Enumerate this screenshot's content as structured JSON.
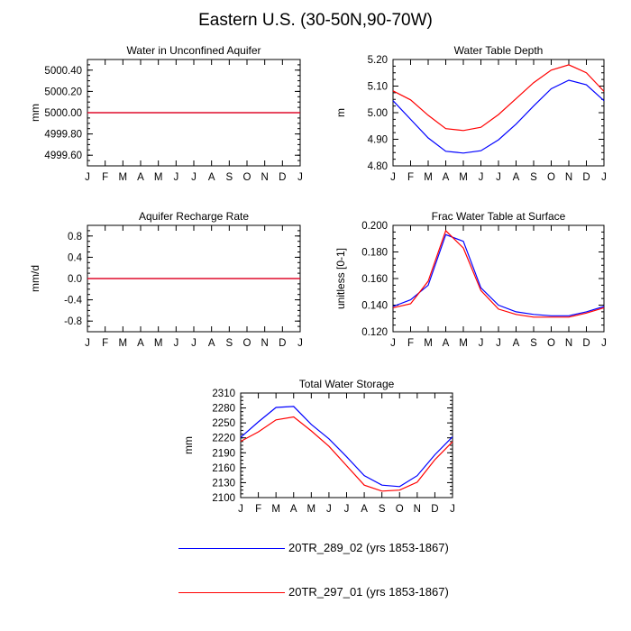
{
  "figure": {
    "title": "Eastern U.S. (30-50N,90-70W)"
  },
  "colors": {
    "run1": "#0000ff",
    "run2": "#ff0000"
  },
  "legend": [
    {
      "label": "20TR_289_02 (yrs 1853-1867)",
      "color": "#0000ff"
    },
    {
      "label": "20TR_297_01 (yrs 1853-1867)",
      "color": "#ff0000"
    }
  ],
  "chart_data": [
    {
      "type": "line",
      "title": "Water in Unconfined Aquifer",
      "ylabel": "mm",
      "x": [
        "J",
        "F",
        "M",
        "A",
        "M",
        "J",
        "J",
        "A",
        "S",
        "O",
        "N",
        "D",
        "J"
      ],
      "ylim": [
        4999.5,
        5000.5
      ],
      "yticks": [
        4999.6,
        4999.8,
        5000.0,
        5000.2,
        5000.4
      ],
      "ytick_labels": [
        "4999.60",
        "4999.80",
        "5000.00",
        "5000.20",
        "5000.40"
      ],
      "series": [
        {
          "name": "20TR_289_02 (yrs 1853-1867)",
          "color": "#0000ff",
          "values": [
            5000,
            5000,
            5000,
            5000,
            5000,
            5000,
            5000,
            5000,
            5000,
            5000,
            5000,
            5000,
            5000
          ]
        },
        {
          "name": "20TR_297_01 (yrs 1853-1867)",
          "color": "#ff0000",
          "values": [
            5000,
            5000,
            5000,
            5000,
            5000,
            5000,
            5000,
            5000,
            5000,
            5000,
            5000,
            5000,
            5000
          ]
        }
      ]
    },
    {
      "type": "line",
      "title": "Water Table Depth",
      "ylabel": "m",
      "x": [
        "J",
        "F",
        "M",
        "A",
        "M",
        "J",
        "J",
        "A",
        "S",
        "O",
        "N",
        "D",
        "J"
      ],
      "ylim": [
        4.8,
        5.2
      ],
      "yticks": [
        4.8,
        4.9,
        5.0,
        5.1,
        5.2
      ],
      "ytick_labels": [
        "4.80",
        "4.90",
        "5.00",
        "5.10",
        "5.20"
      ],
      "series": [
        {
          "name": "20TR_289_02 (yrs 1853-1867)",
          "color": "#0000ff",
          "values": [
            5.045,
            4.975,
            4.905,
            4.855,
            4.848,
            4.857,
            4.898,
            4.957,
            5.025,
            5.09,
            5.122,
            5.105,
            5.045
          ]
        },
        {
          "name": "20TR_297_01 (yrs 1853-1867)",
          "color": "#ff0000",
          "values": [
            5.082,
            5.048,
            4.99,
            4.94,
            4.933,
            4.945,
            4.993,
            5.053,
            5.113,
            5.16,
            5.18,
            5.15,
            5.08
          ]
        }
      ]
    },
    {
      "type": "line",
      "title": "Aquifer Recharge Rate",
      "ylabel": "mm/d",
      "x": [
        "J",
        "F",
        "M",
        "A",
        "M",
        "J",
        "J",
        "A",
        "S",
        "O",
        "N",
        "D",
        "J"
      ],
      "ylim": [
        -1.0,
        1.0
      ],
      "yticks": [
        -0.8,
        -0.4,
        0.0,
        0.4,
        0.8
      ],
      "ytick_labels": [
        "-0.8",
        "-0.4",
        "0.0",
        "0.4",
        "0.8"
      ],
      "series": [
        {
          "name": "20TR_289_02 (yrs 1853-1867)",
          "color": "#0000ff",
          "values": [
            0,
            0,
            0,
            0,
            0,
            0,
            0,
            0,
            0,
            0,
            0,
            0,
            0
          ]
        },
        {
          "name": "20TR_297_01 (yrs 1853-1867)",
          "color": "#ff0000",
          "values": [
            0,
            0,
            0,
            0,
            0,
            0,
            0,
            0,
            0,
            0,
            0,
            0,
            0
          ]
        }
      ]
    },
    {
      "type": "line",
      "title": "Frac Water Table at Surface",
      "ylabel": "unitless [0-1]",
      "x": [
        "J",
        "F",
        "M",
        "A",
        "M",
        "J",
        "J",
        "A",
        "S",
        "O",
        "N",
        "D",
        "J"
      ],
      "ylim": [
        0.12,
        0.2
      ],
      "yticks": [
        0.12,
        0.14,
        0.16,
        0.18,
        0.2
      ],
      "ytick_labels": [
        "0.120",
        "0.140",
        "0.160",
        "0.180",
        "0.200"
      ],
      "series": [
        {
          "name": "20TR_289_02 (yrs 1853-1867)",
          "color": "#0000ff",
          "values": [
            0.139,
            0.144,
            0.155,
            0.193,
            0.188,
            0.153,
            0.14,
            0.135,
            0.133,
            0.132,
            0.132,
            0.135,
            0.139
          ]
        },
        {
          "name": "20TR_297_01 (yrs 1853-1867)",
          "color": "#ff0000",
          "values": [
            0.138,
            0.141,
            0.158,
            0.196,
            0.183,
            0.151,
            0.137,
            0.133,
            0.131,
            0.131,
            0.131,
            0.134,
            0.138
          ]
        }
      ]
    },
    {
      "type": "line",
      "title": "Total Water Storage",
      "ylabel": "mm",
      "x": [
        "J",
        "F",
        "M",
        "A",
        "M",
        "J",
        "J",
        "A",
        "S",
        "O",
        "N",
        "D",
        "J"
      ],
      "ylim": [
        2100,
        2310
      ],
      "yticks": [
        2100,
        2130,
        2160,
        2190,
        2220,
        2250,
        2280,
        2310
      ],
      "ytick_labels": [
        "2100",
        "2130",
        "2160",
        "2190",
        "2220",
        "2250",
        "2280",
        "2310"
      ],
      "series": [
        {
          "name": "20TR_289_02 (yrs 1853-1867)",
          "color": "#0000ff",
          "values": [
            2221,
            2252,
            2281,
            2283,
            2247,
            2218,
            2182,
            2144,
            2125,
            2122,
            2144,
            2186,
            2222
          ]
        },
        {
          "name": "20TR_297_01 (yrs 1853-1867)",
          "color": "#ff0000",
          "values": [
            2213,
            2232,
            2256,
            2262,
            2234,
            2203,
            2164,
            2125,
            2113,
            2115,
            2131,
            2176,
            2212
          ]
        }
      ]
    }
  ]
}
